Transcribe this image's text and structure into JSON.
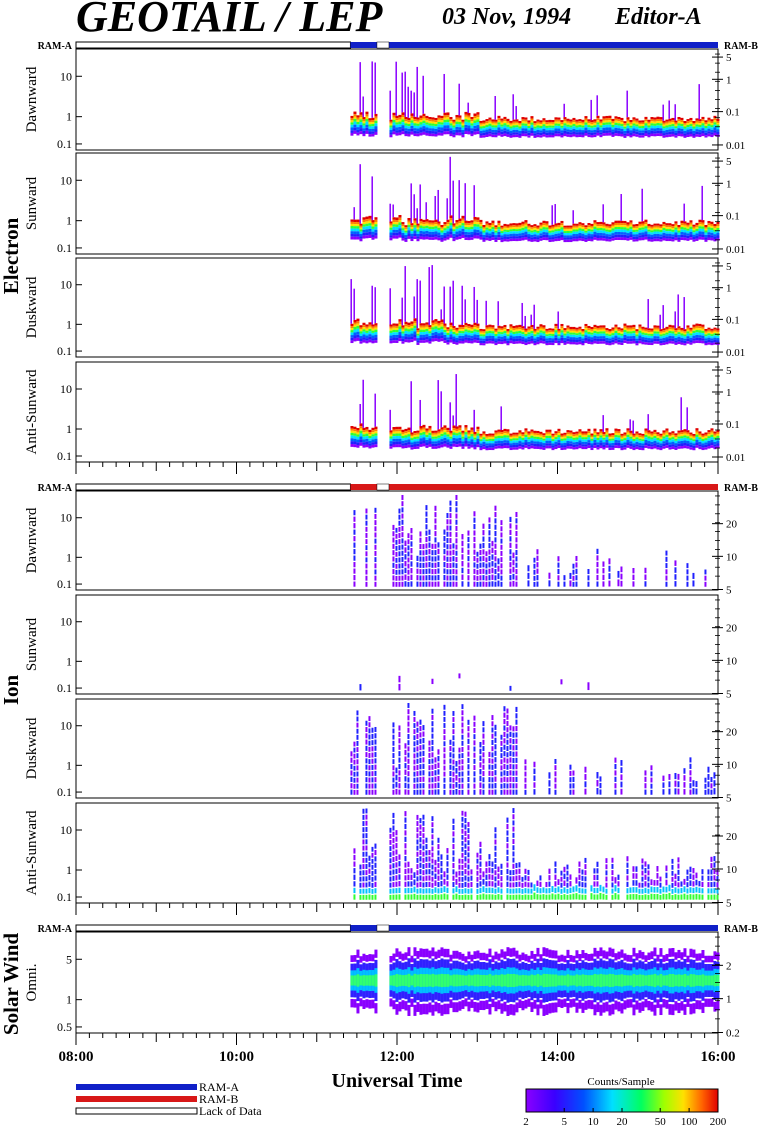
{
  "header": {
    "title": "GEOTAIL / LEP",
    "date": "03 Nov, 1994",
    "editor": "Editor-A"
  },
  "ram_labels": {
    "a": "RAM-A",
    "b": "RAM-B"
  },
  "sections": [
    {
      "id": "electron",
      "label": "Electron"
    },
    {
      "id": "ion",
      "label": "Ion"
    },
    {
      "id": "solar",
      "label": "Solar Wind"
    }
  ],
  "colors": {
    "ram_a": "#1020c8",
    "ram_b": "#d81818",
    "lack": "#ffffff"
  },
  "legend": {
    "ram_a": "RAM-A",
    "ram_b": "RAM-B",
    "lack": "Lack of Data"
  },
  "colorbar": {
    "title": "Counts/Sample",
    "ticks": [
      "2",
      "5",
      "10",
      "20",
      "50",
      "100",
      "200"
    ]
  },
  "chart_data": {
    "type": "heatmap",
    "xlabel": "Universal Time",
    "x_ticks": [
      "08:00",
      "10:00",
      "12:00",
      "14:00",
      "16:00"
    ],
    "xlim_hours": [
      8,
      16
    ],
    "data_start_hour": 11.42,
    "gaps_hours": [
      [
        11.75,
        11.9
      ]
    ],
    "panels": [
      {
        "section": "electron",
        "label": "Dawnward",
        "left_ticks": [
          "10",
          "1",
          "0.1"
        ],
        "right_ticks": [
          "5",
          "1",
          "0.1",
          "0.01"
        ],
        "mode": "electron"
      },
      {
        "section": "electron",
        "label": "Sunward",
        "left_ticks": [
          "10",
          "1",
          "0.1"
        ],
        "right_ticks": [
          "5",
          "1",
          "0.1",
          "0.01"
        ],
        "mode": "electron"
      },
      {
        "section": "electron",
        "label": "Duskward",
        "left_ticks": [
          "10",
          "1",
          "0.1"
        ],
        "right_ticks": [
          "5",
          "1",
          "0.1",
          "0.01"
        ],
        "mode": "electron"
      },
      {
        "section": "electron",
        "label": "Anti-Sunward",
        "left_ticks": [
          "10",
          "1",
          "0.1"
        ],
        "right_ticks": [
          "5",
          "1",
          "0.1",
          "0.01"
        ],
        "mode": "electron"
      },
      {
        "section": "ion",
        "label": "Dawnward",
        "left_ticks": [
          "10",
          "1",
          "0.1"
        ],
        "right_ticks": [
          "20",
          "10",
          "5"
        ],
        "mode": "ion_sparse"
      },
      {
        "section": "ion",
        "label": "Sunward",
        "left_ticks": [
          "10",
          "1",
          "0.1"
        ],
        "right_ticks": [
          "20",
          "10",
          "5"
        ],
        "mode": "ion_very_sparse"
      },
      {
        "section": "ion",
        "label": "Duskward",
        "left_ticks": [
          "10",
          "1",
          "0.1"
        ],
        "right_ticks": [
          "20",
          "10",
          "5"
        ],
        "mode": "ion_sparse"
      },
      {
        "section": "ion",
        "label": "Anti-Sunward",
        "left_ticks": [
          "10",
          "1",
          "0.1"
        ],
        "right_ticks": [
          "20",
          "10",
          "5"
        ],
        "mode": "ion_dense"
      },
      {
        "section": "solar",
        "label": "Omni.",
        "left_ticks": [
          "5",
          "1",
          "0.5"
        ],
        "right_ticks": [
          "2",
          "1",
          "0.2"
        ],
        "mode": "solar"
      }
    ],
    "ram_bars": [
      {
        "ram_a_until_hour": 11.42,
        "ram_b_color": "ram_a"
      },
      {
        "ram_a_until_hour": 11.42,
        "ram_b_color": "ram_b"
      },
      {
        "ram_a_until_hour": 11.42,
        "ram_b_color": "ram_a"
      }
    ]
  }
}
